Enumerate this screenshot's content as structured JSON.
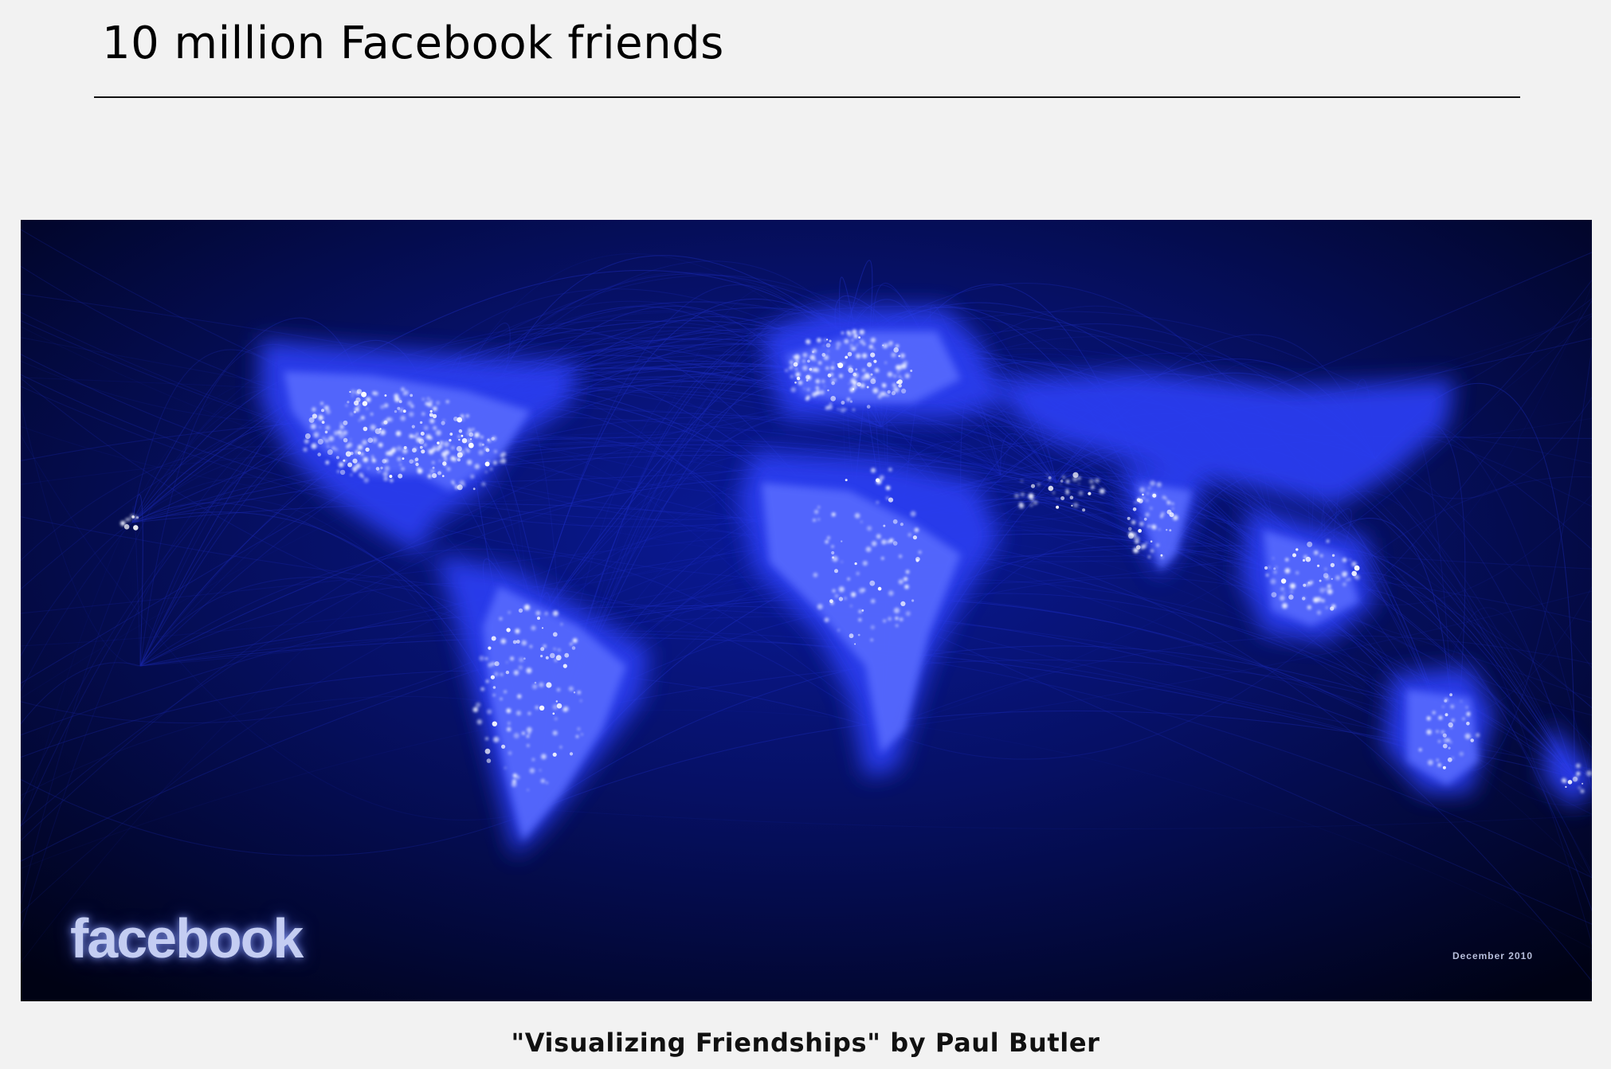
{
  "slide": {
    "title": "10 million Facebook friends",
    "caption": "\"Visualizing Friendships\" by Paul Butler"
  },
  "map": {
    "logo_text": "facebook",
    "date_label": "December 2010",
    "colors": {
      "background": "#000418",
      "land_glow": "#2a3df0",
      "city_light": "#e8ecff",
      "arc": "#1c2fd8"
    }
  }
}
